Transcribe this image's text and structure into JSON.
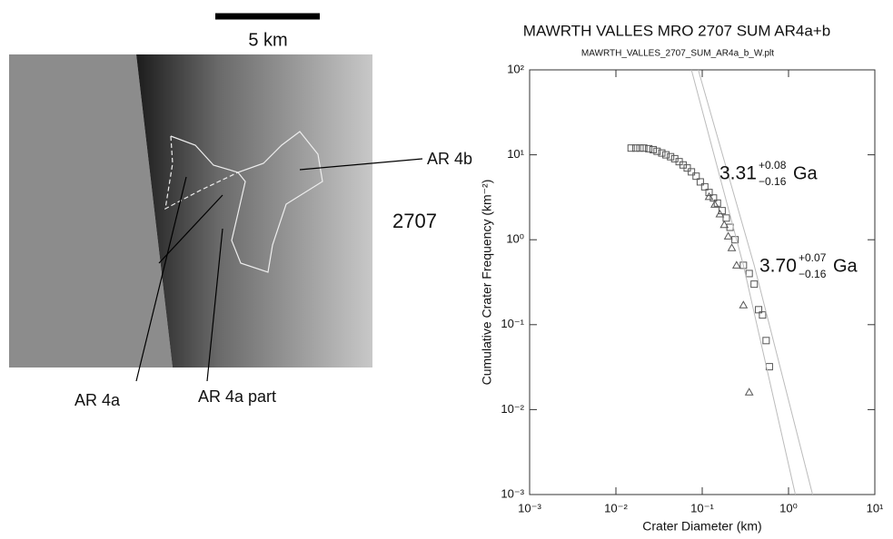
{
  "image_panel": {
    "scale_label": "5 km",
    "region_label_b": "AR 4b",
    "image_id": "2707",
    "region_label_a": "AR 4a",
    "region_label_a_part": "AR 4a part"
  },
  "chart_data": {
    "type": "scatter",
    "title": "MAWRTH VALLES MRO 2707 SUM AR4a+b",
    "subtitle": "MAWRTH_VALLES_2707_SUM_AR4a_b_W.plt",
    "x_label": "Crater Diameter (km)",
    "y_label": "Cumulative Crater Frequency (km⁻²)",
    "x_scale": "log",
    "y_scale": "log",
    "xlim": [
      0.001,
      10
    ],
    "ylim": [
      0.001,
      100
    ],
    "xticks": [
      {
        "value": 0.001,
        "label": "10⁻³"
      },
      {
        "value": 0.01,
        "label": "10⁻²"
      },
      {
        "value": 0.1,
        "label": "10⁻¹"
      },
      {
        "value": 1,
        "label": "10⁰"
      },
      {
        "value": 10,
        "label": "10¹"
      }
    ],
    "yticks": [
      {
        "value": 0.001,
        "label": "10⁻³"
      },
      {
        "value": 0.01,
        "label": "10⁻²"
      },
      {
        "value": 0.1,
        "label": "10⁻¹"
      },
      {
        "value": 1,
        "label": "10⁰"
      },
      {
        "value": 10,
        "label": "10¹"
      },
      {
        "value": 100,
        "label": "10²"
      }
    ],
    "series": [
      {
        "marker": "square",
        "color": "#555555",
        "x": [
          0.015,
          0.017,
          0.019,
          0.021,
          0.024,
          0.027,
          0.03,
          0.034,
          0.038,
          0.043,
          0.048,
          0.054,
          0.06,
          0.067,
          0.075,
          0.085,
          0.095,
          0.107,
          0.12,
          0.135,
          0.15,
          0.17,
          0.19,
          0.21,
          0.24,
          0.3,
          0.35,
          0.4,
          0.45,
          0.5,
          0.55,
          0.6
        ],
        "values": [
          12,
          12,
          12,
          12,
          11.8,
          11.5,
          11,
          10.5,
          10,
          9.5,
          9,
          8.3,
          7.6,
          7,
          6.3,
          5.6,
          4.8,
          4.2,
          3.6,
          3.1,
          2.7,
          2.2,
          1.8,
          1.4,
          1.0,
          0.5,
          0.4,
          0.3,
          0.15,
          0.13,
          0.065,
          0.032
        ]
      },
      {
        "marker": "triangle",
        "color": "#555555",
        "x": [
          0.12,
          0.14,
          0.16,
          0.18,
          0.2,
          0.22,
          0.25,
          0.3,
          0.35
        ],
        "values": [
          3.2,
          2.6,
          2.0,
          1.5,
          1.1,
          0.8,
          0.5,
          0.17,
          0.016
        ]
      },
      {
        "marker": "line",
        "color": "#bbbbbb",
        "x": [
          0.075,
          0.3,
          1.2
        ],
        "values": [
          100,
          0.5,
          0.001
        ]
      },
      {
        "marker": "line",
        "color": "#bbbbbb",
        "x": [
          0.09,
          0.4,
          1.9
        ],
        "values": [
          100,
          0.5,
          0.001
        ]
      }
    ],
    "annotations": [
      {
        "text": "3.31",
        "plus": "+0.08",
        "minus": "−0.16",
        "unit": "Ga"
      },
      {
        "text": "3.70",
        "plus": "+0.07",
        "minus": "−0.16",
        "unit": "Ga"
      }
    ]
  }
}
